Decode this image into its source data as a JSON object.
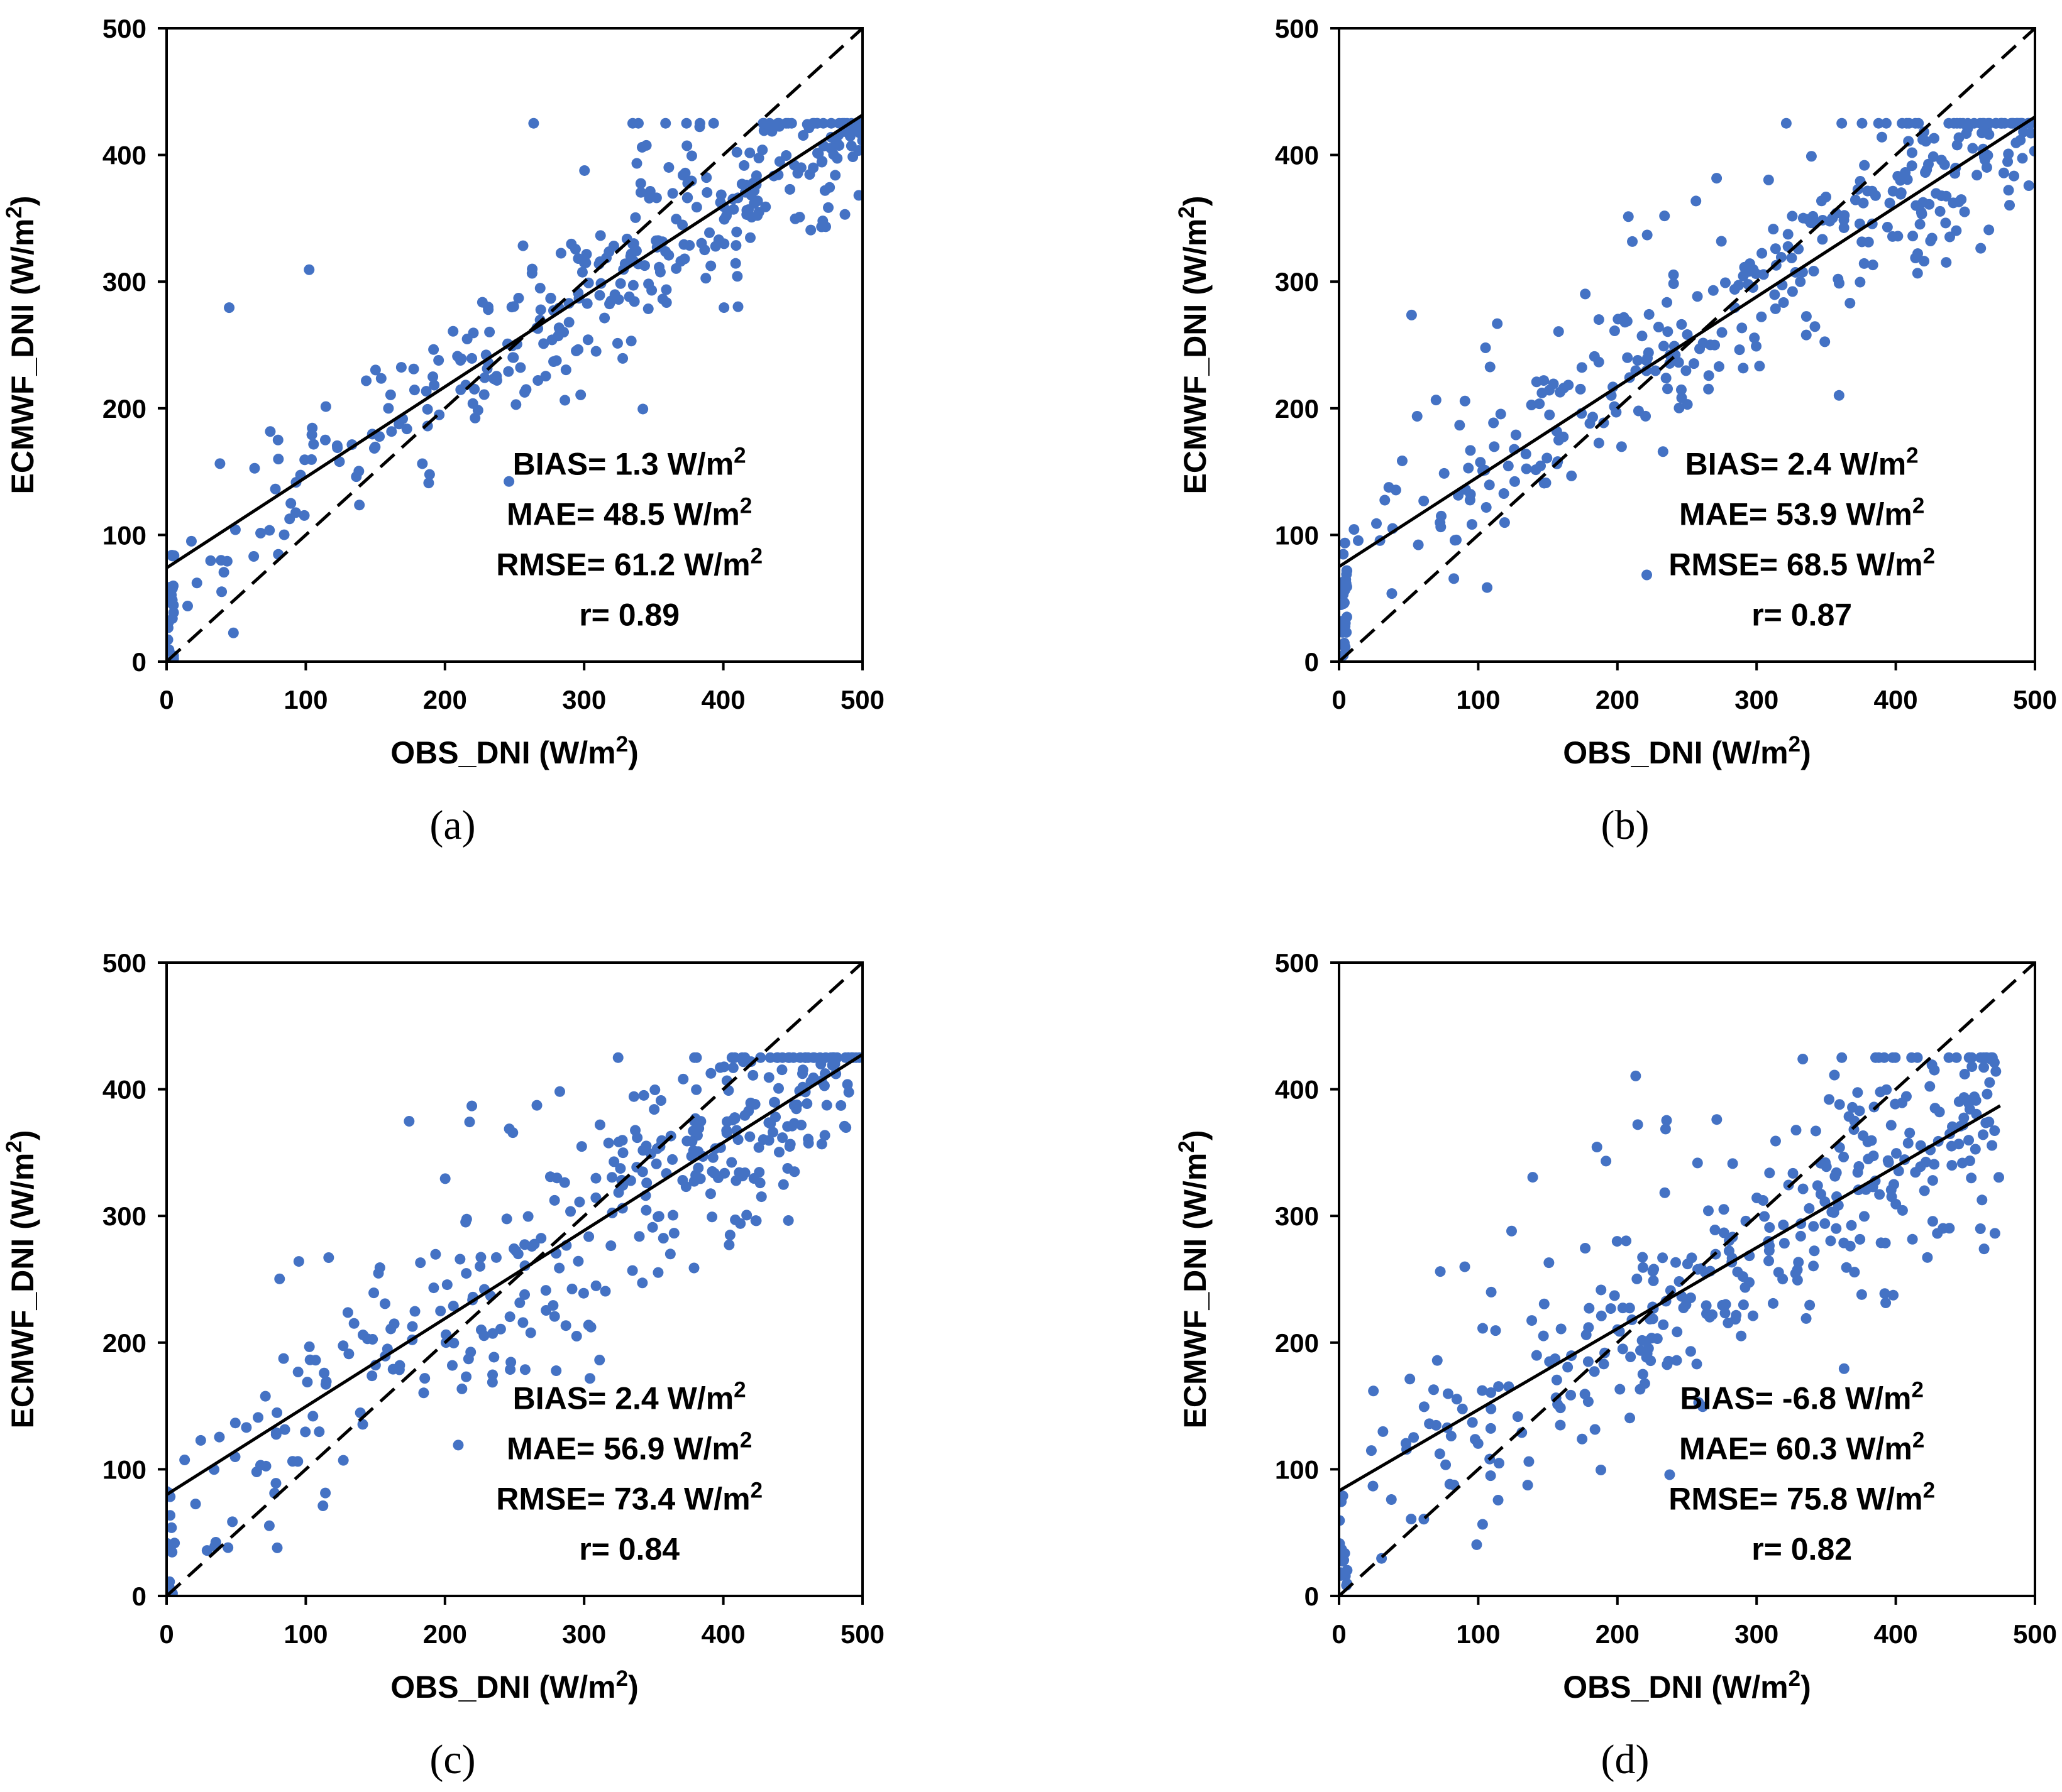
{
  "figure": {
    "caption_labels": [
      "(a)",
      "(b)",
      "(c)",
      "(d)"
    ]
  },
  "chart_data": [
    {
      "type": "scatter",
      "panel": "(a)",
      "xlabel": "OBS_DNI (W/m²)",
      "ylabel": "ECMWF_DNI (W/m²)",
      "xlim": [
        0,
        500
      ],
      "ylim": [
        0,
        500
      ],
      "xticks": [
        0,
        100,
        200,
        300,
        400,
        500
      ],
      "yticks": [
        0,
        100,
        200,
        300,
        400,
        500
      ],
      "fit_line": {
        "intercept": 74,
        "slope": 0.715,
        "style": "solid"
      },
      "identity_line": {
        "slope": 1,
        "intercept": 0,
        "style": "dashed"
      },
      "point_color": "#4472C4",
      "stats": {
        "bias": "BIAS= 1.3 W/m²",
        "mae": "MAE= 48.5 W/m²",
        "rmse": "RMSE= 61.2 W/m²",
        "r": "r= 0.89"
      },
      "seed": 11,
      "noise": 30,
      "outliers": 10,
      "n": 380
    },
    {
      "type": "scatter",
      "panel": "(b)",
      "xlabel": "OBS_DNI (W/m²)",
      "ylabel": "ECMWF_DNI (W/m²)",
      "xlim": [
        0,
        500
      ],
      "ylim": [
        0,
        500
      ],
      "xticks": [
        0,
        100,
        200,
        300,
        400,
        500
      ],
      "yticks": [
        0,
        100,
        200,
        300,
        400,
        500
      ],
      "fit_line": {
        "intercept": 75,
        "slope": 0.71,
        "style": "solid"
      },
      "identity_line": {
        "slope": 1,
        "intercept": 0,
        "style": "dashed"
      },
      "point_color": "#4472C4",
      "stats": {
        "bias": "BIAS= 2.4 W/m²",
        "mae": "MAE= 53.9 W/m²",
        "rmse": "RMSE= 68.5 W/m²",
        "r": "r= 0.87"
      },
      "seed": 23,
      "noise": 34,
      "outliers": 14,
      "n": 380
    },
    {
      "type": "scatter",
      "panel": "(c)",
      "xlabel": "OBS_DNI (W/m²)",
      "ylabel": "ECMWF_DNI (W/m²)",
      "xlim": [
        0,
        500
      ],
      "ylim": [
        0,
        500
      ],
      "xticks": [
        0,
        100,
        200,
        300,
        400,
        500
      ],
      "yticks": [
        0,
        100,
        200,
        300,
        400,
        500
      ],
      "fit_line": {
        "intercept": 80,
        "slope": 0.695,
        "style": "solid"
      },
      "identity_line": {
        "slope": 1,
        "intercept": 0,
        "style": "dashed"
      },
      "point_color": "#4472C4",
      "stats": {
        "bias": "BIAS= 2.4 W/m²",
        "mae": "MAE= 56.9 W/m²",
        "rmse": "RMSE= 73.4 W/m²",
        "r": "r= 0.84"
      },
      "seed": 37,
      "noise": 38,
      "outliers": 18,
      "n": 380
    },
    {
      "type": "scatter",
      "panel": "(d)",
      "xlabel": "OBS_DNI (W/m²)",
      "ylabel": "ECMWF_DNI (W/m²)",
      "xlim": [
        0,
        500
      ],
      "ylim": [
        0,
        500
      ],
      "xticks": [
        0,
        100,
        200,
        300,
        400,
        500
      ],
      "yticks": [
        0,
        100,
        200,
        300,
        400,
        500
      ],
      "fit_line": {
        "intercept": 83,
        "slope": 0.64,
        "style": "solid"
      },
      "identity_line": {
        "slope": 1,
        "intercept": 0,
        "style": "dashed"
      },
      "point_color": "#4472C4",
      "stats": {
        "bias": "BIAS= -6.8 W/m²",
        "mae": "MAE= 60.3 W/m²",
        "rmse": "RMSE= 75.8 W/m²",
        "r": "r= 0.82"
      },
      "seed": 53,
      "noise": 40,
      "outliers": 20,
      "n": 380,
      "xmax_points": 475
    }
  ]
}
